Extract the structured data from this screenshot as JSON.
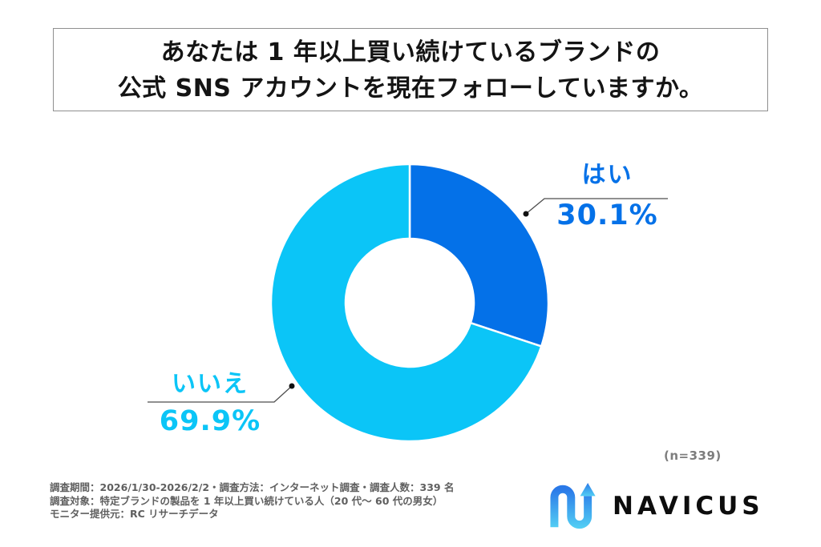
{
  "title": {
    "line1": "あなたは 1 年以上買い続けているブランドの",
    "line2": "公式 SNS アカウントを現在フォローしていますか。"
  },
  "chart_data": {
    "type": "pie",
    "subtype": "donut",
    "labels": [
      "はい",
      "いいえ"
    ],
    "values": [
      30.1,
      69.9
    ],
    "value_labels": [
      "30.1%",
      "69.9%"
    ],
    "colors": [
      "#0471E8",
      "#0BC5F7"
    ],
    "start_angle": "12-oclock",
    "direction": "clockwise",
    "hole_ratio": 0.46,
    "slice_gap_color": "#ffffff",
    "sample_note": "(n=339)"
  },
  "footnotes": {
    "line1": "調査期間：2026/1/30-2026/2/2・調査方法：インターネット調査・調査人数：339 名",
    "line2": "調査対象：特定ブランドの製品を 1 年以上買い続けている人（20 代〜 60 代の男女）",
    "line3": "モニター提供元：RC リサーチデータ"
  },
  "logo": {
    "text": "NAVICUS",
    "mark_icon": "n-curve-up-arrow-icon",
    "mark_gradient_top": "#2A79E8",
    "mark_gradient_bottom": "#52CDF4",
    "text_color": "#0d0d0d"
  }
}
